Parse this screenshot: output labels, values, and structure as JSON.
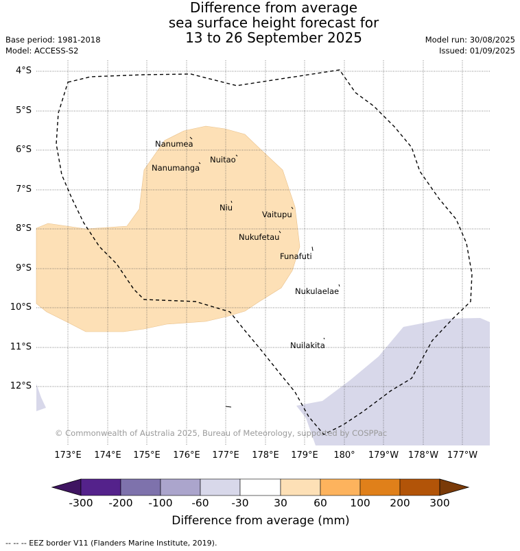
{
  "title": {
    "line1": "Difference from average",
    "line2": "sea surface height forecast for",
    "line3": "13 to 26 September 2025"
  },
  "meta": {
    "base_period": "Base period: 1981-2018",
    "model": "Model: ACCESS-S2",
    "model_run": "Model run: 30/08/2025",
    "issued": "Issued: 01/09/2025"
  },
  "latitude_labels": [
    "4°S",
    "5°S",
    "6°S",
    "7°S",
    "8°S",
    "9°S",
    "10°S",
    "11°S",
    "12°S"
  ],
  "longitude_labels": [
    "173°E",
    "174°E",
    "175°E",
    "176°E",
    "177°E",
    "178°E",
    "179°E",
    "180°",
    "179°W",
    "178°W",
    "177°W"
  ],
  "places": [
    "Nanumea",
    "Nuitao",
    "Nanumanga",
    "Niu",
    "Vaitupu",
    "Nukufetau",
    "Funafuti",
    "Nukulaelae",
    "Nuilakita"
  ],
  "copyright": "© Commonwealth of Australia 2025, Bureau of Meteorology, supported by COSPPac",
  "colorbar": {
    "ticks": [
      "-300",
      "-200",
      "-100",
      "-60",
      "-30",
      "30",
      "60",
      "100",
      "200",
      "300"
    ],
    "colors": [
      "#3f1561",
      "#54228b",
      "#7e72ac",
      "#aba5cc",
      "#d8d8ea",
      "#ffffff",
      "#fde0b6",
      "#fdb35d",
      "#e0801a",
      "#b25408",
      "#7a3a08"
    ],
    "title": "Difference from average (mm)"
  },
  "footnote": "-- -- -- EEZ border V11 (Flanders Marine Institute, 2019).",
  "colors": {
    "positive_30_60": "#fde0b6",
    "negative_30_60": "#d8d8ea",
    "grid": "#555555"
  }
}
